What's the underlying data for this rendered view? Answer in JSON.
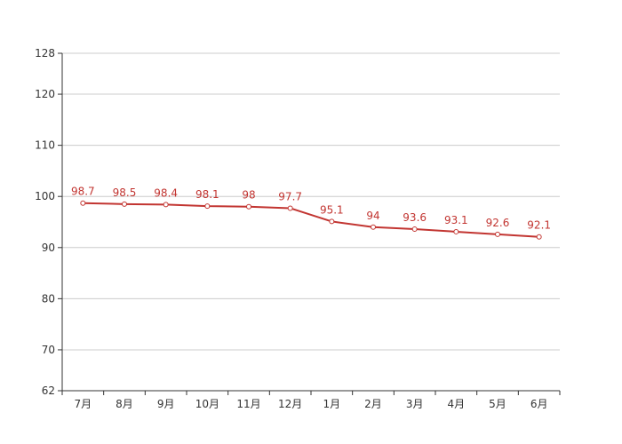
{
  "chart_data": {
    "type": "line",
    "title": "",
    "xlabel": "",
    "ylabel": "",
    "categories": [
      "7月",
      "8月",
      "9月",
      "10月",
      "11月",
      "12月",
      "1月",
      "2月",
      "3月",
      "4月",
      "5月",
      "6月"
    ],
    "series": [
      {
        "values": [
          98.7,
          98.5,
          98.4,
          98.1,
          98,
          97.7,
          95.1,
          94,
          93.6,
          93.1,
          92.6,
          92.1
        ],
        "labels": [
          "98.7",
          "98.5",
          "98.4",
          "98.1",
          "98",
          "97.7",
          "95.1",
          "94",
          "93.6",
          "93.1",
          "92.6",
          "92.1"
        ],
        "color": "#c23531"
      }
    ],
    "ylim": [
      62,
      128
    ],
    "yticks": [
      62,
      70,
      80,
      90,
      100,
      110,
      120,
      128
    ],
    "ytick_labels": [
      "62",
      "70",
      "80",
      "90",
      "100",
      "110",
      "120",
      "128"
    ],
    "grid": true,
    "legend": "none",
    "point_marker": "hollow-circle",
    "colors": {
      "line": "#c23531",
      "grid": "#cccccc",
      "axis": "#333333",
      "text": "#333333"
    }
  }
}
